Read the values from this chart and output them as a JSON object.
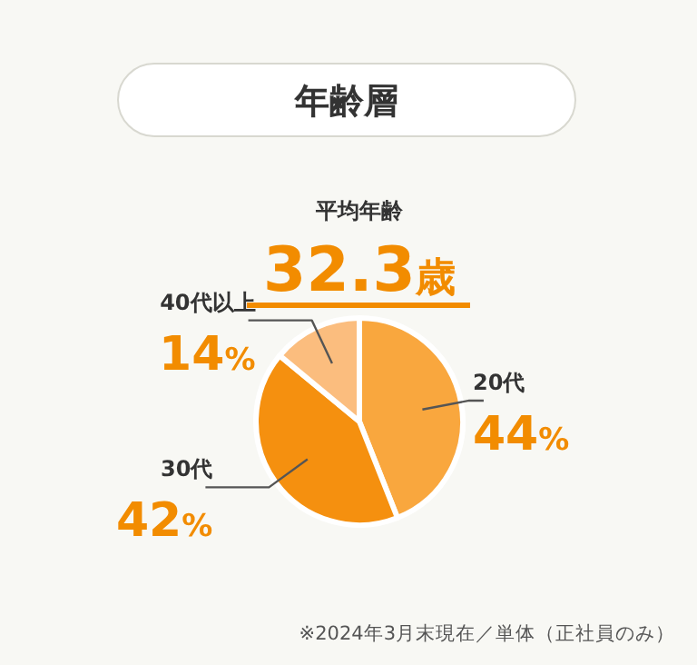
{
  "chart_data": {
    "type": "pie",
    "title": "年齢層",
    "subtitle": "平均年齢",
    "annotations": [
      "32.3歳",
      "※2024年3月末現在／単体（正社員のみ）"
    ],
    "categories": [
      "20代",
      "30代",
      "40代以上"
    ],
    "values": [
      44,
      42,
      14
    ],
    "colors": [
      "#f9a73e",
      "#f5900f",
      "#fbbd7e"
    ],
    "value_labels": [
      "44%",
      "42%",
      "14%"
    ]
  }
}
